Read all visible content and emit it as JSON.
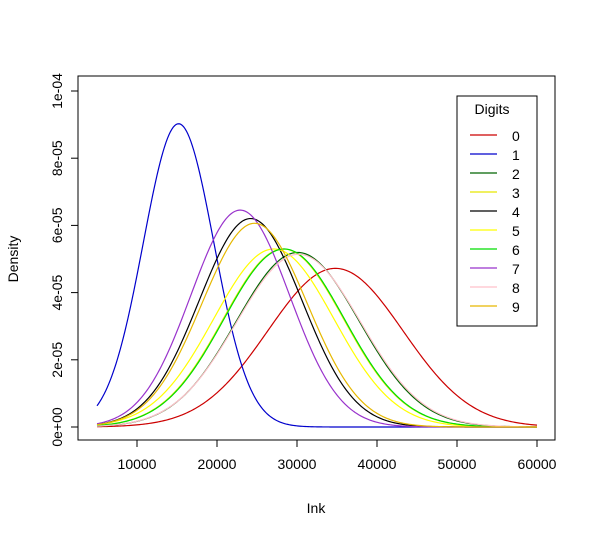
{
  "chart_data": {
    "type": "line",
    "title": "",
    "xlabel": "Ink",
    "ylabel": "Density",
    "xlim": [
      5000,
      60000
    ],
    "ylim": [
      0,
      0.0001
    ],
    "x_ticks": [
      10000,
      20000,
      30000,
      40000,
      50000,
      60000
    ],
    "x_tick_labels": [
      "10000",
      "20000",
      "30000",
      "40000",
      "50000",
      "60000"
    ],
    "y_ticks": [
      0,
      2e-05,
      4e-05,
      6e-05,
      8e-05,
      0.0001
    ],
    "y_tick_labels": [
      "0e+00",
      "2e-05",
      "4e-05",
      "6e-05",
      "8e-05",
      "1e-04"
    ],
    "grid": false,
    "legend": {
      "title": "Digits",
      "placement": "top-right"
    },
    "series": [
      {
        "name": "0",
        "color": "#cc0000",
        "distribution": "normal",
        "mean": 34800,
        "sd": 8450
      },
      {
        "name": "1",
        "color": "#0000cc",
        "distribution": "normal",
        "mean": 15200,
        "sd": 4420
      },
      {
        "name": "2",
        "color": "#006400",
        "distribution": "normal",
        "mean": 30100,
        "sd": 7680
      },
      {
        "name": "3",
        "color": "#e6e600",
        "distribution": "normal",
        "mean": 28300,
        "sd": 7530
      },
      {
        "name": "4",
        "color": "#000000",
        "distribution": "normal",
        "mean": 24200,
        "sd": 6430
      },
      {
        "name": "5",
        "color": "#ffff00",
        "distribution": "normal",
        "mean": 27100,
        "sd": 7530
      },
      {
        "name": "6",
        "color": "#00dd00",
        "distribution": "normal",
        "mean": 28400,
        "sd": 7530
      },
      {
        "name": "7",
        "color": "#9933cc",
        "distribution": "normal",
        "mean": 22900,
        "sd": 6180
      },
      {
        "name": "8",
        "color": "#ffc0cb",
        "distribution": "normal",
        "mean": 30200,
        "sd": 7760
      },
      {
        "name": "9",
        "color": "#e6b800",
        "distribution": "normal",
        "mean": 24700,
        "sd": 6580
      }
    ]
  }
}
